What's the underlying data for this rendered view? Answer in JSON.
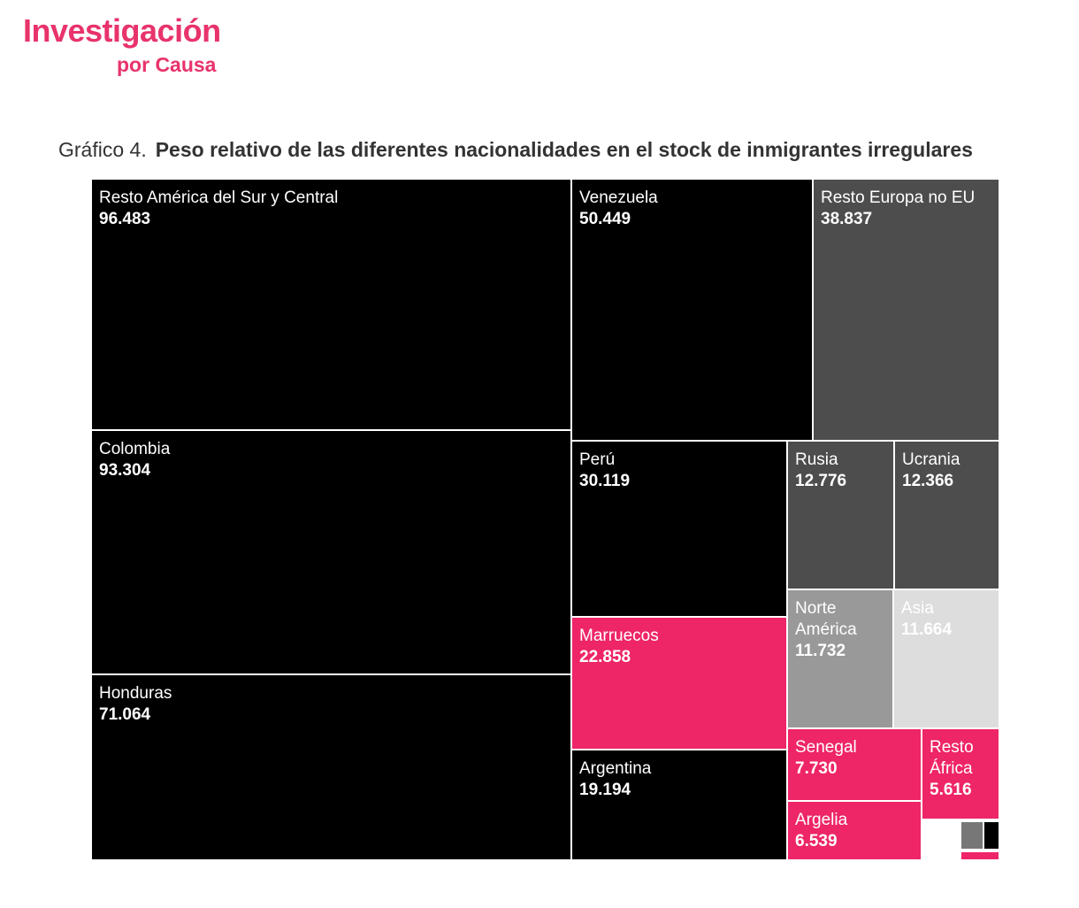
{
  "logo": {
    "line1": "Investigación",
    "line2": "por Causa"
  },
  "chart_title": {
    "prefix": "Gráfico 4.",
    "main": "Peso relativo de las diferentes nacionalidades en el stock de inmigrantes irregulares"
  },
  "colors": {
    "americas": "#000000",
    "europe": "#4d4d4d",
    "north_america": "#999999",
    "asia": "#dddddd",
    "africa": "#ee2567",
    "brand": "#e8336b"
  },
  "chart_data": {
    "type": "treemap",
    "title": "Peso relativo de las diferentes nacionalidades en el stock de inmigrantes irregulares",
    "items": [
      {
        "label": "Resto América del Sur y Central",
        "value_text": "96.483",
        "value": 96483,
        "color": "#000000"
      },
      {
        "label": "Colombia",
        "value_text": "93.304",
        "value": 93304,
        "color": "#000000"
      },
      {
        "label": "Honduras",
        "value_text": "71.064",
        "value": 71064,
        "color": "#000000"
      },
      {
        "label": "Venezuela",
        "value_text": "50.449",
        "value": 50449,
        "color": "#000000"
      },
      {
        "label": "Resto Europa no EU",
        "value_text": "38.837",
        "value": 38837,
        "color": "#4d4d4d"
      },
      {
        "label": "Perú",
        "value_text": "30.119",
        "value": 30119,
        "color": "#000000"
      },
      {
        "label": "Marruecos",
        "value_text": "22.858",
        "value": 22858,
        "color": "#ee2567"
      },
      {
        "label": "Argentina",
        "value_text": "19.194",
        "value": 19194,
        "color": "#000000"
      },
      {
        "label": "Rusia",
        "value_text": "12.776",
        "value": 12776,
        "color": "#4d4d4d"
      },
      {
        "label": "Ucrania",
        "value_text": "12.366",
        "value": 12366,
        "color": "#4d4d4d"
      },
      {
        "label": "Norte América",
        "value_text": "11.732",
        "value": 11732,
        "color": "#999999"
      },
      {
        "label": "Asia",
        "value_text": "11.664",
        "value": 11664,
        "color": "#dddddd"
      },
      {
        "label": "Senegal",
        "value_text": "7.730",
        "value": 7730,
        "color": "#ee2567"
      },
      {
        "label": "Argelia",
        "value_text": "6.539",
        "value": 6539,
        "color": "#ee2567"
      },
      {
        "label": "Resto África",
        "value_text": "5.616",
        "value": 5616,
        "color": "#ee2567"
      },
      {
        "label": "",
        "value_text": "",
        "value": null,
        "color": "#777777"
      },
      {
        "label": "",
        "value_text": "",
        "value": null,
        "color": "#000000"
      },
      {
        "label": "",
        "value_text": "",
        "value": null,
        "color": "#ee2567"
      }
    ]
  }
}
